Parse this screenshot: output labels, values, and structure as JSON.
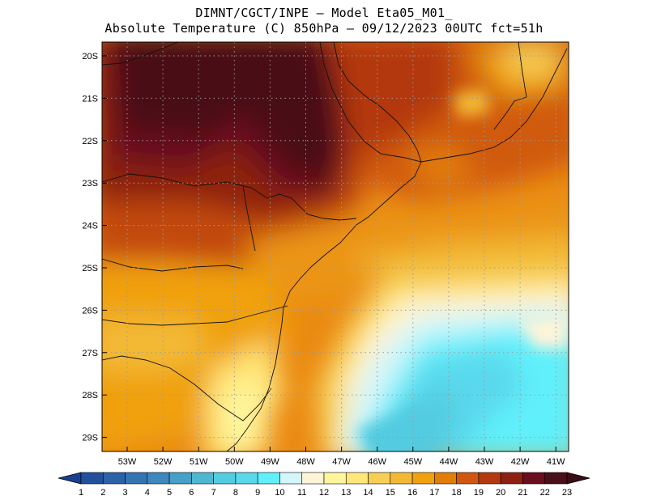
{
  "title": {
    "line1": "DIMNT/CGCT/INPE –  Model Eta05_M01_",
    "line2": "Absolute Temperature (C) 850hPa –  09/12/2023 00UTC fct=51h"
  },
  "map": {
    "lat_labels": [
      "20S",
      "21S",
      "22S",
      "23S",
      "24S",
      "25S",
      "26S",
      "27S",
      "28S",
      "29S"
    ],
    "lon_labels": [
      "53W",
      "52W",
      "51W",
      "50W",
      "49W",
      "48W",
      "47W",
      "46W",
      "45W",
      "44W",
      "43W",
      "42W",
      "41W"
    ],
    "grid": true
  },
  "colorbar": {
    "labels": [
      "1",
      "2",
      "3",
      "4",
      "5",
      "6",
      "7",
      "8",
      "9",
      "10",
      "11",
      "12",
      "13",
      "14",
      "15",
      "16",
      "17",
      "18",
      "19",
      "20",
      "21",
      "22",
      "23"
    ],
    "colors": [
      "#1a3f8f",
      "#22509c",
      "#2b62a8",
      "#3574b2",
      "#3d87bd",
      "#46a0c8",
      "#4eb8d2",
      "#53cbe0",
      "#5ad8ec",
      "#60f0fb",
      "#d3f6fb",
      "#fff4d8",
      "#fff59c",
      "#ffe779",
      "#f6cf55",
      "#f3b935",
      "#f0a10d",
      "#e27d08",
      "#d1570f",
      "#b4380d",
      "#8e2011",
      "#6a0d1c",
      "#4a0f18",
      "#3a0d14"
    ]
  }
}
